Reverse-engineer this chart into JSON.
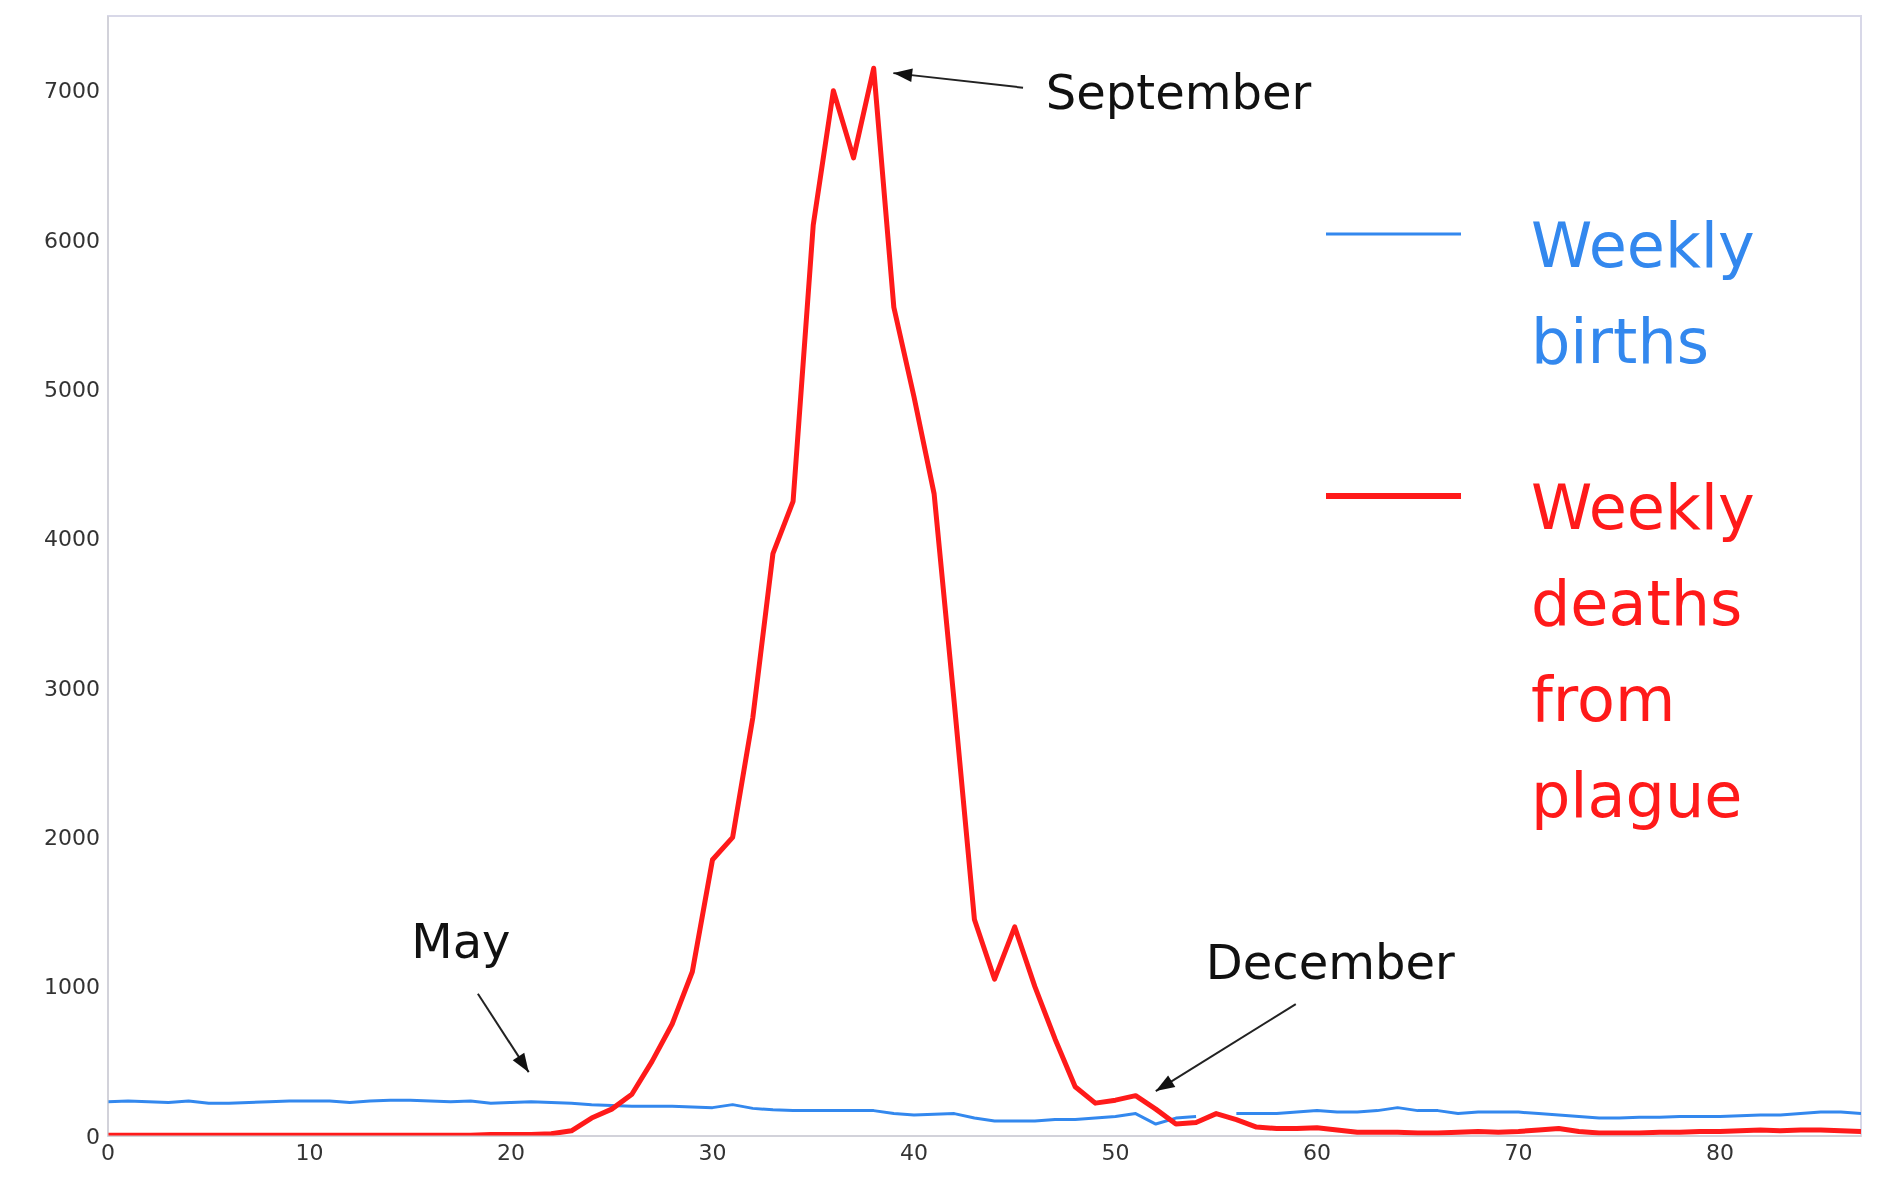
{
  "chart_data": {
    "type": "line",
    "x": [
      0,
      1,
      2,
      3,
      4,
      5,
      6,
      7,
      8,
      9,
      10,
      11,
      12,
      13,
      14,
      15,
      16,
      17,
      18,
      19,
      20,
      21,
      22,
      23,
      24,
      25,
      26,
      27,
      28,
      29,
      30,
      31,
      32,
      33,
      34,
      35,
      36,
      37,
      38,
      39,
      40,
      41,
      42,
      43,
      44,
      45,
      46,
      47,
      48,
      49,
      50,
      51,
      52,
      53,
      54,
      55,
      56,
      57,
      58,
      59,
      60,
      61,
      62,
      63,
      64,
      65,
      66,
      67,
      68,
      69,
      70,
      71,
      72,
      73,
      74,
      75,
      76,
      77,
      78,
      79,
      80,
      81,
      82,
      83,
      84,
      85,
      86,
      87
    ],
    "series": [
      {
        "name": "Weekly births",
        "color": "#3388ee",
        "values": [
          230,
          235,
          230,
          225,
          235,
          220,
          220,
          225,
          230,
          235,
          235,
          235,
          225,
          235,
          240,
          240,
          235,
          230,
          235,
          220,
          225,
          230,
          225,
          220,
          210,
          205,
          200,
          200,
          200,
          195,
          190,
          210,
          185,
          175,
          170,
          170,
          170,
          170,
          170,
          150,
          140,
          145,
          150,
          120,
          100,
          100,
          100,
          110,
          110,
          120,
          130,
          150,
          80,
          120,
          130,
          null,
          150,
          150,
          150,
          160,
          170,
          160,
          160,
          170,
          190,
          170,
          170,
          150,
          160,
          160,
          160,
          150,
          140,
          130,
          120,
          120,
          125,
          125,
          130,
          130,
          130,
          135,
          140,
          140,
          150,
          160,
          160,
          150
        ]
      },
      {
        "name": "Weekly deaths from plague",
        "color": "#ff1a1a",
        "values": [
          5,
          5,
          5,
          5,
          5,
          5,
          5,
          5,
          5,
          5,
          5,
          5,
          5,
          5,
          5,
          5,
          5,
          5,
          5,
          10,
          10,
          10,
          15,
          35,
          120,
          180,
          280,
          500,
          750,
          1100,
          1850,
          2000,
          2800,
          3900,
          4250,
          6100,
          7000,
          6550,
          7150,
          5550,
          4950,
          4300,
          2900,
          1450,
          1050,
          1400,
          1000,
          650,
          330,
          220,
          240,
          270,
          180,
          80,
          90,
          150,
          110,
          60,
          50,
          50,
          55,
          40,
          25,
          25,
          25,
          20,
          20,
          25,
          30,
          25,
          30,
          40,
          50,
          30,
          20,
          20,
          20,
          25,
          25,
          30,
          30,
          35,
          40,
          35,
          40,
          40,
          35,
          30
        ]
      }
    ],
    "xlim": [
      0,
      87
    ],
    "xticks": [
      0,
      10,
      20,
      30,
      40,
      50,
      60,
      70,
      80
    ],
    "ylim": [
      0,
      7500
    ],
    "yticks": [
      0,
      1000,
      2000,
      3000,
      4000,
      5000,
      6000,
      7000
    ],
    "legend": "top right",
    "marker": "none",
    "line_style": "solid",
    "annotations": [
      "September",
      "May",
      {
        "text": "December",
        "x": 52,
        "y": 180
      }
    ]
  }
}
